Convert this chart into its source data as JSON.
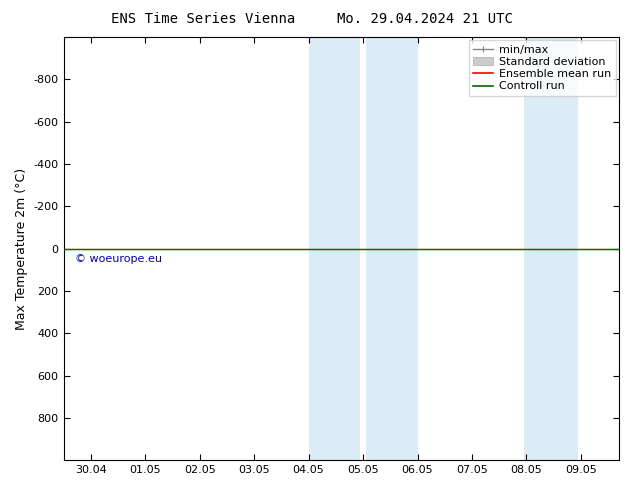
{
  "title_left": "ENS Time Series Vienna",
  "title_right": "Mo. 29.04.2024 21 UTC",
  "ylabel": "Max Temperature 2m (°C)",
  "ylim_top": -1000,
  "ylim_bottom": 1000,
  "yticks": [
    -800,
    -600,
    -400,
    -200,
    0,
    200,
    400,
    600,
    800
  ],
  "xtick_labels": [
    "30.04",
    "01.05",
    "02.05",
    "03.05",
    "04.05",
    "05.05",
    "06.05",
    "07.05",
    "08.05",
    "09.05"
  ],
  "xtick_positions": [
    0,
    1,
    2,
    3,
    4,
    5,
    6,
    7,
    8,
    9
  ],
  "xlim": [
    -0.5,
    9.7
  ],
  "shaded_bands": [
    {
      "x_start": 4.0,
      "x_end": 4.95,
      "color": "#cce5f5",
      "alpha": 0.7
    },
    {
      "x_start": 5.05,
      "x_end": 6.0,
      "color": "#cce5f5",
      "alpha": 0.7
    },
    {
      "x_start": 7.95,
      "x_end": 8.95,
      "color": "#cce5f5",
      "alpha": 0.7
    }
  ],
  "control_run_y": 0,
  "ensemble_mean_y": 0,
  "watermark": "© woeurope.eu",
  "watermark_color": "#0000cc",
  "watermark_x_pos": 0.02,
  "watermark_y_pos": 50,
  "legend_items": [
    "min/max",
    "Standard deviation",
    "Ensemble mean run",
    "Controll run"
  ],
  "legend_line_colors": [
    "#888888",
    "#bbbbbb",
    "#ff0000",
    "#006600"
  ],
  "background_color": "#ffffff",
  "title_fontsize": 10,
  "axis_label_fontsize": 9,
  "tick_fontsize": 8,
  "legend_fontsize": 8
}
